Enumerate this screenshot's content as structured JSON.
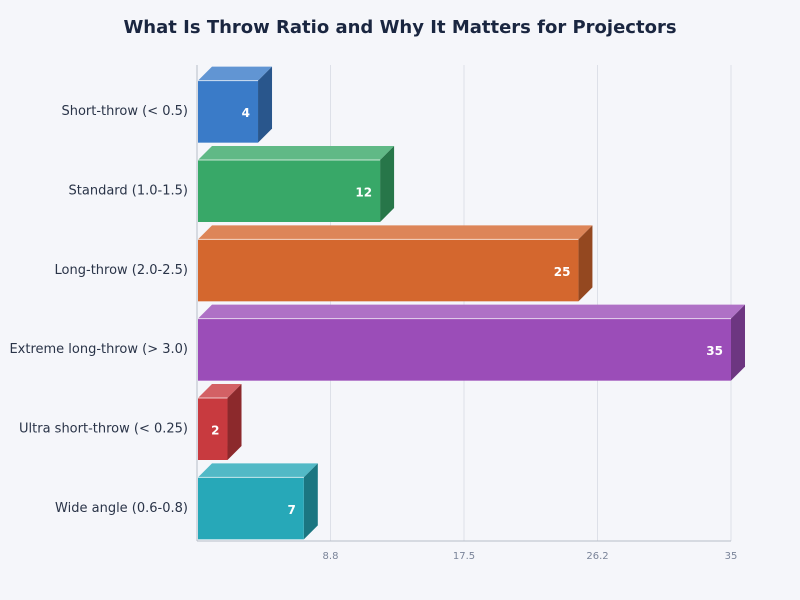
{
  "chart_data": {
    "type": "bar",
    "orientation": "horizontal",
    "title": "What Is Throw Ratio and Why It Matters for Projectors",
    "categories": [
      "Short-throw (< 0.5)",
      "Standard (1.0-1.5)",
      "Long-throw (2.0-2.5)",
      "Extreme long-throw (> 3.0)",
      "Ultra short-throw (< 0.25)",
      "Wide angle (0.6-0.8)"
    ],
    "values": [
      4,
      12,
      25,
      35,
      2,
      7
    ],
    "colors": [
      "#3a7bc8",
      "#38a868",
      "#d4672e",
      "#9b4db8",
      "#c83a3f",
      "#27a8b8"
    ],
    "xlim": [
      0,
      35
    ],
    "xticks": [
      {
        "value": 8.75,
        "label": "8.8"
      },
      17.5,
      {
        "value": 26.25,
        "label": "26.2"
      },
      35
    ],
    "grid": true
  }
}
